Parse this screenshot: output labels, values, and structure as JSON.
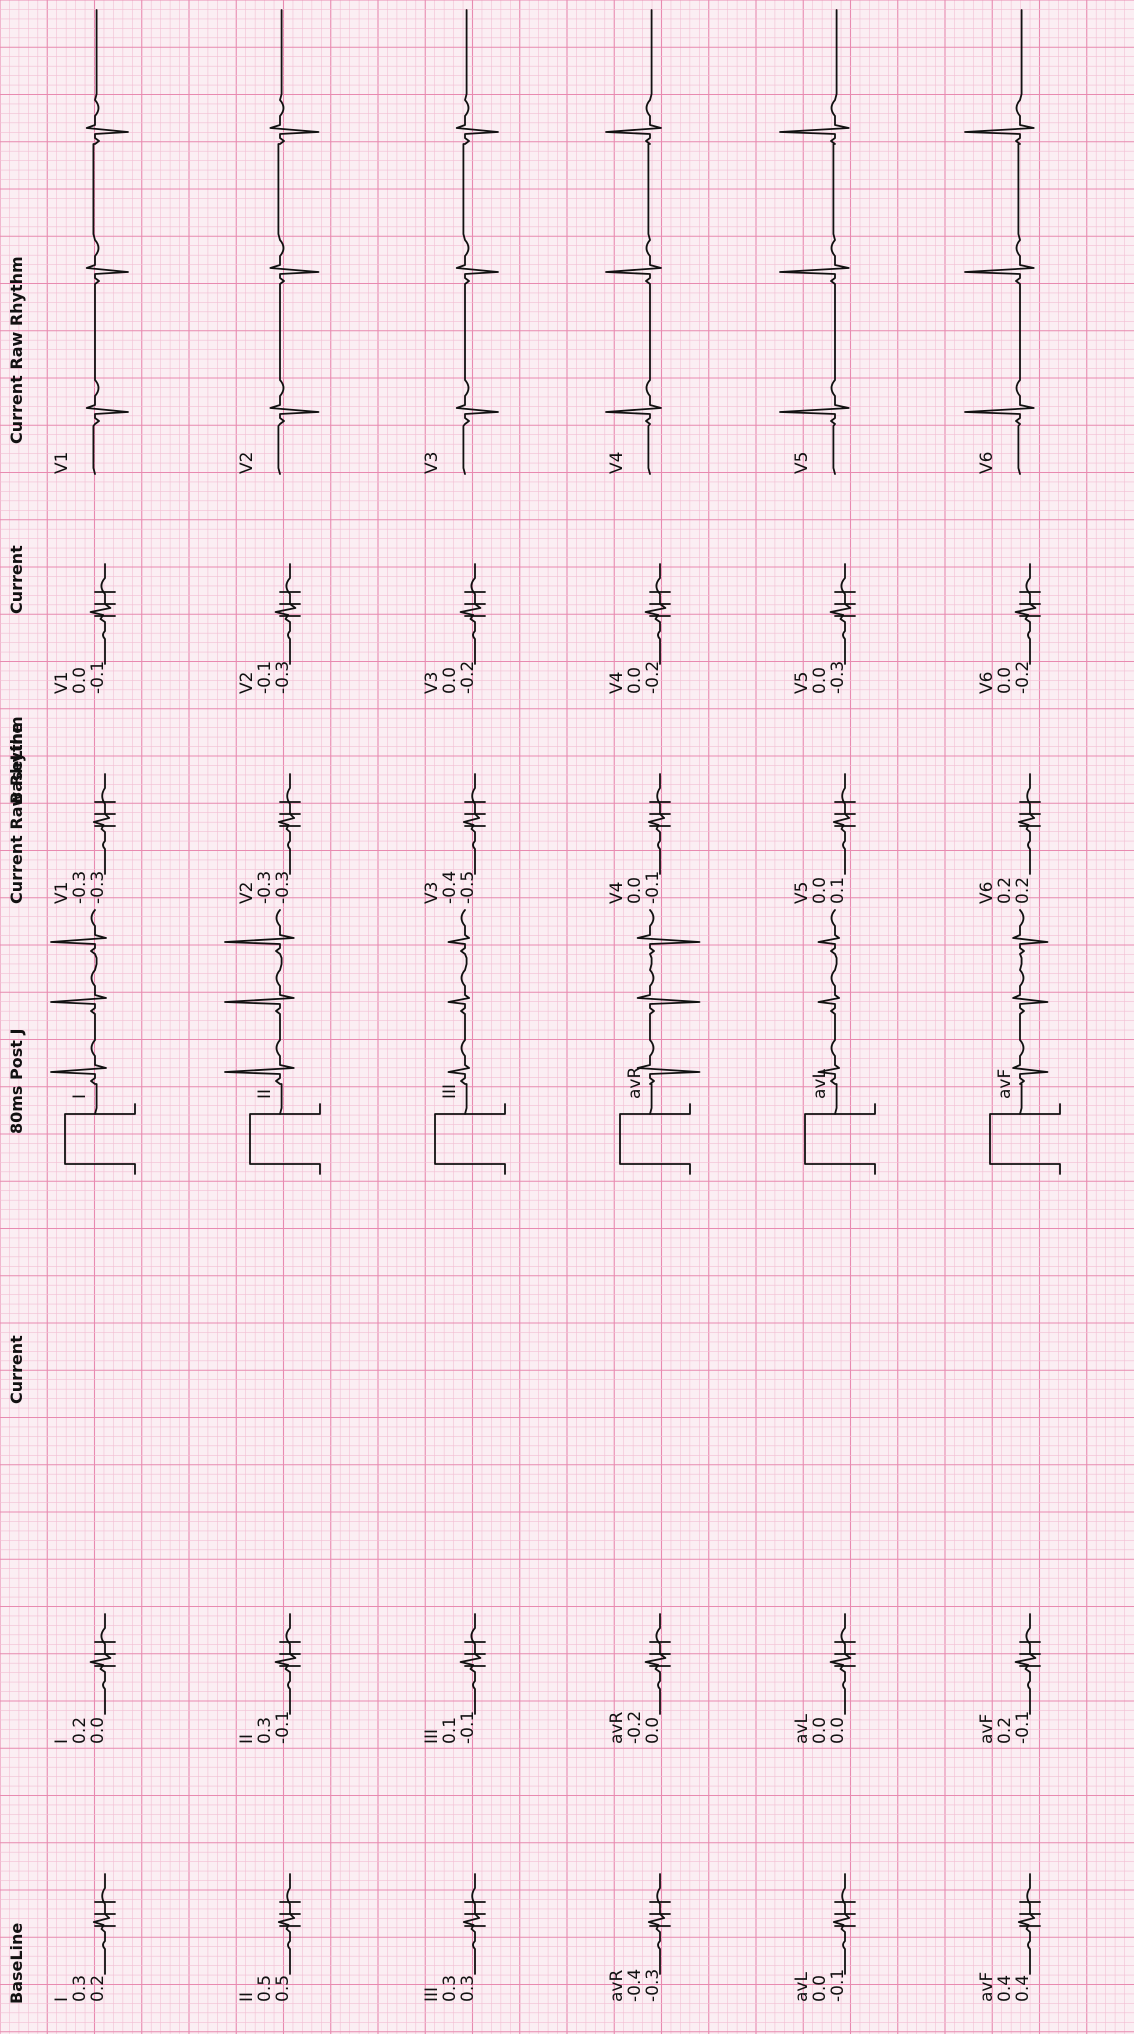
{
  "headers": {
    "col1": [
      "BaseLine",
      "Current",
      "80ms Post J",
      "Current Raw Rhythm"
    ],
    "col2": [
      "BaseLine",
      "Current",
      "Current Raw Rhythm"
    ]
  },
  "colors": {
    "paper": "#fbeef3",
    "grid_minor": "#f2bfd3",
    "grid_major": "#e88ab0",
    "trace": "#111111"
  },
  "chart_data": [
    {
      "type": "table",
      "title": "",
      "leads": [
        {
          "lead": "I",
          "baseline": [
            "0.3",
            "0.2"
          ],
          "current": [
            "0.2",
            "0.0"
          ]
        },
        {
          "lead": "II",
          "baseline": [
            "0.5",
            "0.5"
          ],
          "current": [
            "0.3",
            "-0.1"
          ]
        },
        {
          "lead": "III",
          "baseline": [
            "0.3",
            "0.3"
          ],
          "current": [
            "0.1",
            "-0.1"
          ]
        },
        {
          "lead": "avR",
          "baseline": [
            "-0.4",
            "-0.3"
          ],
          "current": [
            "-0.2",
            "0.0"
          ]
        },
        {
          "lead": "avL",
          "baseline": [
            "0.0",
            "-0.1"
          ],
          "current": [
            "0.0",
            "0.0"
          ]
        },
        {
          "lead": "avF",
          "baseline": [
            "0.4",
            "0.4"
          ],
          "current": [
            "0.2",
            "-0.1"
          ]
        }
      ]
    },
    {
      "type": "table",
      "title": "",
      "leads": [
        {
          "lead": "V1",
          "baseline": [
            "-0.3",
            "-0.3"
          ],
          "current": [
            "0.0",
            "-0.1"
          ]
        },
        {
          "lead": "V2",
          "baseline": [
            "-0.3",
            "-0.3"
          ],
          "current": [
            "-0.1",
            "-0.3"
          ]
        },
        {
          "lead": "V3",
          "baseline": [
            "-0.4",
            "-0.5"
          ],
          "current": [
            "0.0",
            "-0.2"
          ]
        },
        {
          "lead": "V4",
          "baseline": [
            "0.0",
            "-0.1"
          ],
          "current": [
            "0.0",
            "-0.2"
          ]
        },
        {
          "lead": "V5",
          "baseline": [
            "0.0",
            "0.1"
          ],
          "current": [
            "0.0",
            "-0.3"
          ]
        },
        {
          "lead": "V6",
          "baseline": [
            "0.2",
            "0.2"
          ],
          "current": [
            "0.0",
            "-0.2"
          ]
        }
      ]
    },
    {
      "type": "line",
      "title": "Current Raw Rhythm",
      "note": "rhythm strips: 3 beats per lead; polarity 1 = upright QRS, -1 = inverted; amp = relative deflection",
      "strips": [
        {
          "lead": "I",
          "polarity": 1,
          "amp": 0.8
        },
        {
          "lead": "II",
          "polarity": 1,
          "amp": 1.0
        },
        {
          "lead": "III",
          "polarity": 1,
          "amp": 0.3
        },
        {
          "lead": "avR",
          "polarity": -1,
          "amp": 0.9
        },
        {
          "lead": "avL",
          "polarity": 1,
          "amp": 0.3
        },
        {
          "lead": "avF",
          "polarity": -1,
          "amp": 0.5
        },
        {
          "lead": "V1",
          "polarity": -1,
          "amp": 0.6
        },
        {
          "lead": "V2",
          "polarity": -1,
          "amp": 0.7
        },
        {
          "lead": "V3",
          "polarity": -1,
          "amp": 0.6
        },
        {
          "lead": "V4",
          "polarity": 1,
          "amp": 0.8
        },
        {
          "lead": "V5",
          "polarity": 1,
          "amp": 1.0
        },
        {
          "lead": "V6",
          "polarity": 1,
          "amp": 1.0
        }
      ]
    }
  ]
}
